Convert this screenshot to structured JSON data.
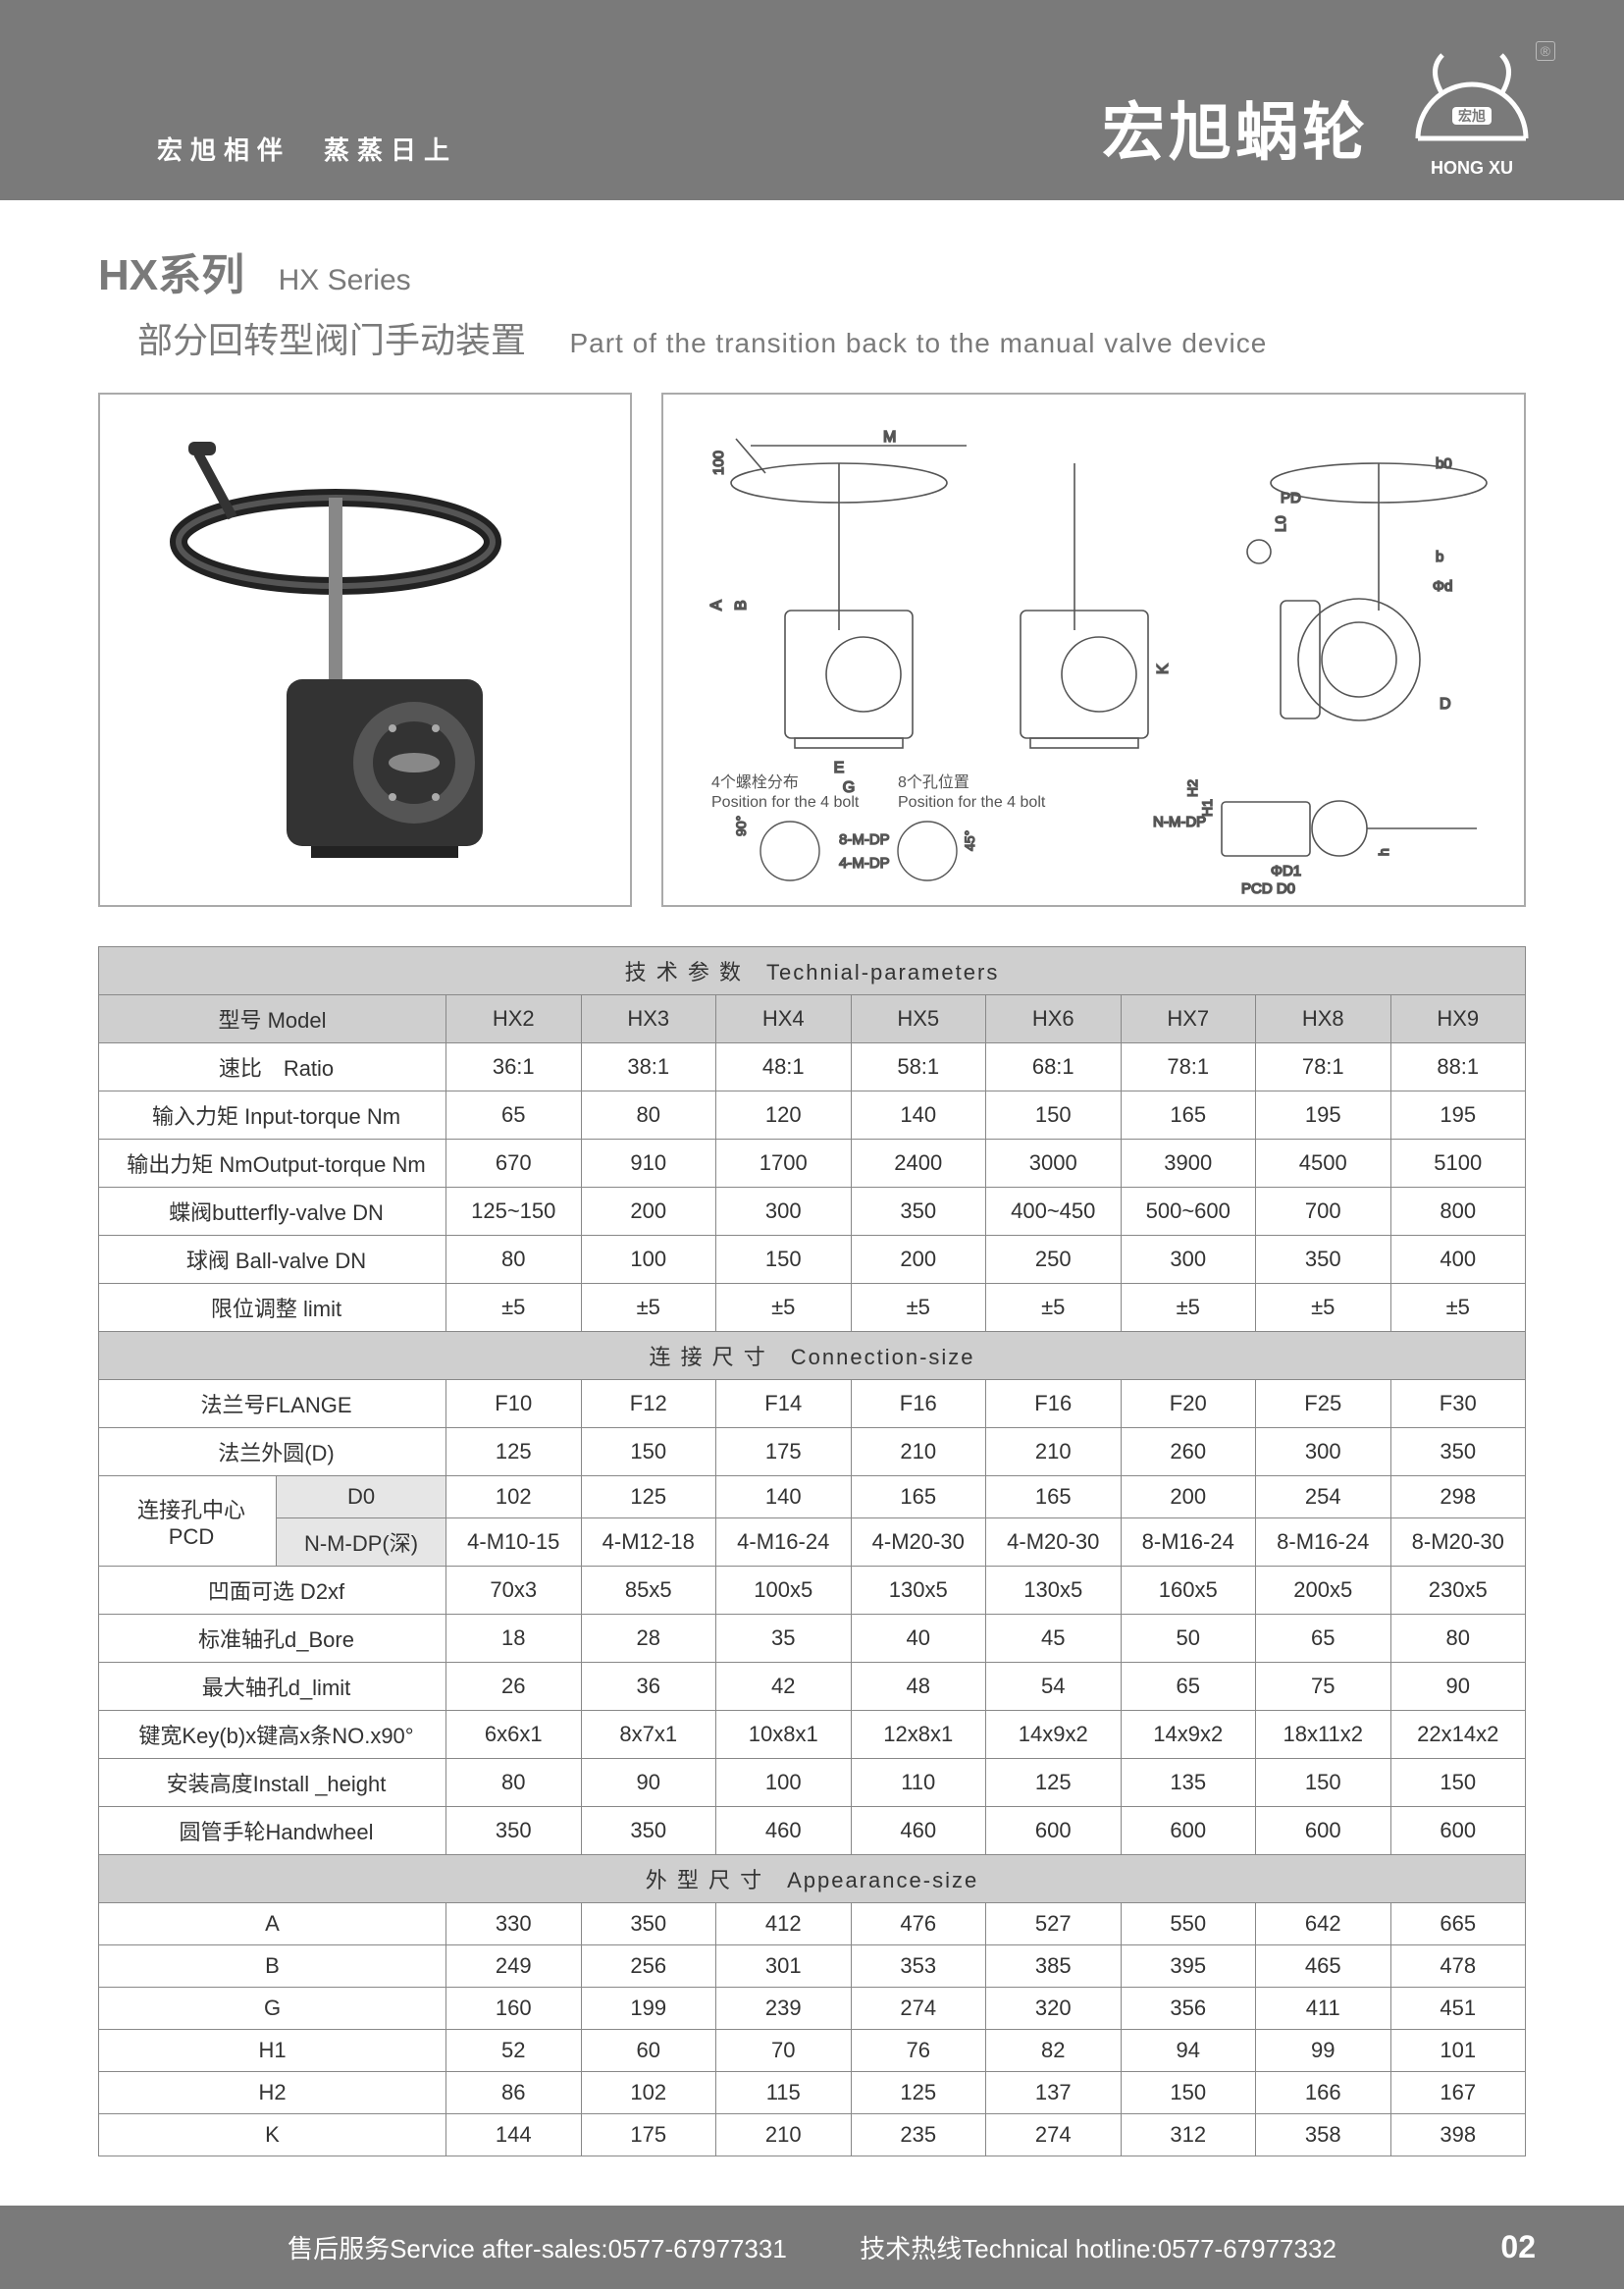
{
  "banner": {
    "tagline": "宏旭相伴　蒸蒸日上",
    "brand_cn": "宏旭蜗轮",
    "brand_en": "HONG XU",
    "brand_inner": "宏旭"
  },
  "title": {
    "series_cn": "HX系列",
    "series_en": "HX Series",
    "subtitle_cn": "部分回转型阀门手动装置",
    "subtitle_en": "Part of the transition back to the manual valve  device"
  },
  "figure": {
    "dims_top": "100",
    "dim_M": "M",
    "dim_A": "A",
    "dim_B": "B",
    "dim_E": "E",
    "dim_G": "G",
    "dim_K": "K",
    "dim_L0": "L0",
    "dim_PD": "PD",
    "dim_b0": "b0",
    "dim_b": "b",
    "dim_phid": "Φd",
    "dim_D": "D",
    "note4bolt_cn": "4个螺栓分布",
    "note4bolt_en": "Position for the 4 bolt",
    "note8bolt_cn": "8个孔位置",
    "note8bolt_en": "Position for the 4 bolt",
    "angle90": "90°",
    "angle45": "45°",
    "label_8mdp": "8-M-DP",
    "label_4mdp": "4-M-DP",
    "label_nmdp": "N-M-DP",
    "dim_phiD1": "ΦD1",
    "dim_PCD": "PCD",
    "dim_D0": "D0",
    "dim_H1": "H1",
    "dim_H2": "H2",
    "dim_h": "h"
  },
  "table": {
    "section_tech": "技 术 参 数　Technial-parameters",
    "section_conn": "连 接 尺 寸　Connection-size",
    "section_app": "外 型 尺 寸　Appearance-size",
    "model_label": "型号 Model",
    "models": [
      "HX2",
      "HX3",
      "HX4",
      "HX5",
      "HX6",
      "HX7",
      "HX8",
      "HX9"
    ],
    "rows_tech": [
      {
        "label": "速比　Ratio",
        "v": [
          "36:1",
          "38:1",
          "48:1",
          "58:1",
          "68:1",
          "78:1",
          "78:1",
          "88:1"
        ]
      },
      {
        "label": "输入力矩 Input-torque Nm",
        "v": [
          "65",
          "80",
          "120",
          "140",
          "150",
          "165",
          "195",
          "195"
        ]
      },
      {
        "label": "输出力矩 NmOutput-torque Nm",
        "v": [
          "670",
          "910",
          "1700",
          "2400",
          "3000",
          "3900",
          "4500",
          "5100"
        ]
      },
      {
        "label": "蝶阀butterfly-valve DN",
        "v": [
          "125~150",
          "200",
          "300",
          "350",
          "400~450",
          "500~600",
          "700",
          "800"
        ]
      },
      {
        "label": "球阀 Ball-valve DN",
        "v": [
          "80",
          "100",
          "150",
          "200",
          "250",
          "300",
          "350",
          "400"
        ]
      },
      {
        "label": "限位调整 limit",
        "v": [
          "±5",
          "±5",
          "±5",
          "±5",
          "±5",
          "±5",
          "±5",
          "±5"
        ]
      }
    ],
    "rows_conn_flat": [
      {
        "label": "法兰号FLANGE",
        "v": [
          "F10",
          "F12",
          "F14",
          "F16",
          "F16",
          "F20",
          "F25",
          "F30"
        ]
      },
      {
        "label": "法兰外圆(D)",
        "v": [
          "125",
          "150",
          "175",
          "210",
          "210",
          "260",
          "300",
          "350"
        ]
      }
    ],
    "pcd_group_label": "连接孔中心\nPCD",
    "pcd_rows": [
      {
        "sub": "D0",
        "v": [
          "102",
          "125",
          "140",
          "165",
          "165",
          "200",
          "254",
          "298"
        ]
      },
      {
        "sub": "N-M-DP(深)",
        "v": [
          "4-M10-15",
          "4-M12-18",
          "4-M16-24",
          "4-M20-30",
          "4-M20-30",
          "8-M16-24",
          "8-M16-24",
          "8-M20-30"
        ]
      }
    ],
    "rows_conn_rest": [
      {
        "label": "凹面可选 D2xf",
        "v": [
          "70x3",
          "85x5",
          "100x5",
          "130x5",
          "130x5",
          "160x5",
          "200x5",
          "230x5"
        ]
      },
      {
        "label": "标准轴孔d_Bore",
        "v": [
          "18",
          "28",
          "35",
          "40",
          "45",
          "50",
          "65",
          "80"
        ]
      },
      {
        "label": "最大轴孔d_limit",
        "v": [
          "26",
          "36",
          "42",
          "48",
          "54",
          "65",
          "75",
          "90"
        ]
      },
      {
        "label": "键宽Key(b)x键高x条NO.x90°",
        "v": [
          "6x6x1",
          "8x7x1",
          "10x8x1",
          "12x8x1",
          "14x9x2",
          "14x9x2",
          "18x11x2",
          "22x14x2"
        ]
      },
      {
        "label": "安装高度Install _height",
        "v": [
          "80",
          "90",
          "100",
          "110",
          "125",
          "135",
          "150",
          "150"
        ]
      },
      {
        "label": "圆管手轮Handwheel",
        "v": [
          "350",
          "350",
          "460",
          "460",
          "600",
          "600",
          "600",
          "600"
        ]
      }
    ],
    "rows_app": [
      {
        "label": "A",
        "v": [
          "330",
          "350",
          "412",
          "476",
          "527",
          "550",
          "642",
          "665"
        ]
      },
      {
        "label": "B",
        "v": [
          "249",
          "256",
          "301",
          "353",
          "385",
          "395",
          "465",
          "478"
        ]
      },
      {
        "label": "G",
        "v": [
          "160",
          "199",
          "239",
          "274",
          "320",
          "356",
          "411",
          "451"
        ]
      },
      {
        "label": "H1",
        "v": [
          "52",
          "60",
          "70",
          "76",
          "82",
          "94",
          "99",
          "101"
        ]
      },
      {
        "label": "H2",
        "v": [
          "86",
          "102",
          "115",
          "125",
          "137",
          "150",
          "166",
          "167"
        ]
      },
      {
        "label": "K",
        "v": [
          "144",
          "175",
          "210",
          "235",
          "274",
          "312",
          "358",
          "398"
        ]
      }
    ]
  },
  "footer": {
    "after_sales": "售后服务Service after-sales:0577-67977331",
    "hotline": "技术热线Technical hotline:0577-67977332",
    "page_num": "02"
  },
  "colors": {
    "banner_bg": "#7a7a7a",
    "table_header_bg": "#cfcfcf",
    "border": "#888888",
    "text_gray": "#7a7a7a"
  }
}
